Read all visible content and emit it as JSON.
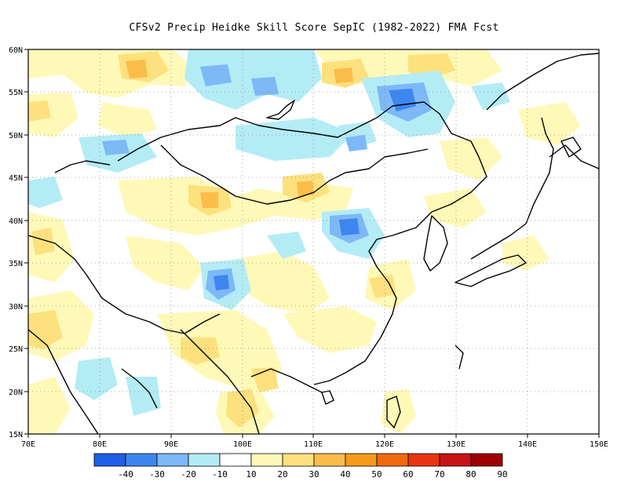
{
  "title": "CFSv2 Precip Heidke Skill Score SepIC (1982-2022) FMA Fcst",
  "lon_ticks": [
    "70E",
    "80E",
    "90E",
    "100E",
    "110E",
    "120E",
    "130E",
    "140E",
    "150E"
  ],
  "lat_ticks": [
    "15N",
    "20N",
    "25N",
    "30N",
    "35N",
    "40N",
    "45N",
    "50N",
    "55N",
    "60N"
  ],
  "colorbar": {
    "colors": [
      "#1e5fe6",
      "#3d86f0",
      "#7db8f7",
      "#b4ecf5",
      "#ffffff",
      "#fff9b8",
      "#fde17e",
      "#fbbd4a",
      "#f59a1c",
      "#f06a0f",
      "#e63510",
      "#c81414",
      "#9e0000"
    ],
    "labels": [
      "-40",
      "-30",
      "-20",
      "-10",
      "10",
      "20",
      "30",
      "40",
      "50",
      "60",
      "70",
      "80",
      "90"
    ]
  }
}
